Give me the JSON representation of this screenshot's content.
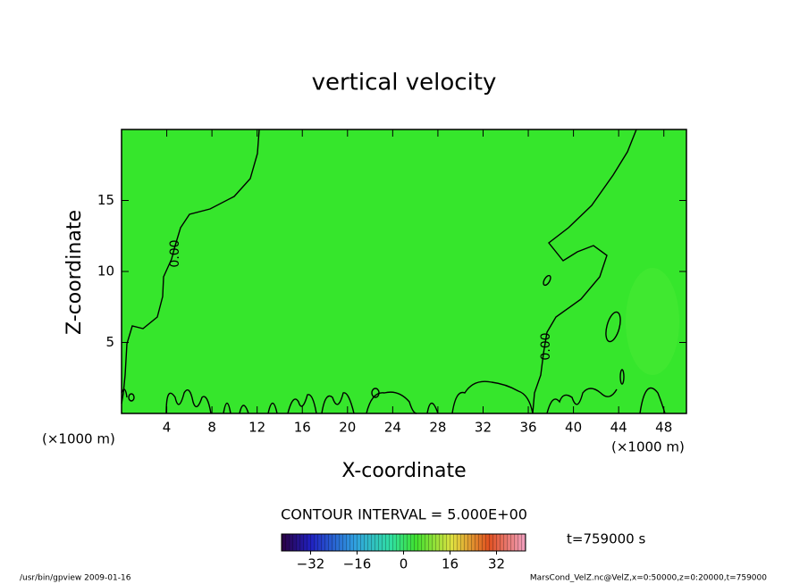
{
  "chart_data": {
    "type": "contour",
    "title": "vertical velocity",
    "xlabel": "X-coordinate",
    "ylabel": "Z-coordinate",
    "xunit": "(×1000 m)",
    "yunit": "(×1000 m)",
    "xlim": [
      0,
      50
    ],
    "xticks": [
      4,
      8,
      12,
      16,
      20,
      24,
      28,
      32,
      36,
      40,
      44,
      48
    ],
    "ylim": [
      0,
      20
    ],
    "yticks": [
      5,
      10,
      15
    ],
    "contour_labels": [
      "0.00",
      "0.00"
    ],
    "contour_interval": "CONTOUR INTERVAL = 5.000E+00",
    "clim": [
      -42,
      42
    ],
    "cticks": [
      {
        "value": -32,
        "label": "−32"
      },
      {
        "value": -16,
        "label": "−16"
      },
      0,
      16,
      32
    ],
    "time_label": "t=759000 s",
    "footer_left": "/usr/bin/gpview   2009-01-16",
    "footer_right": "MarsCond_VelZ.nc@VelZ,x=0:50000,z=0:20000,t=759000"
  }
}
